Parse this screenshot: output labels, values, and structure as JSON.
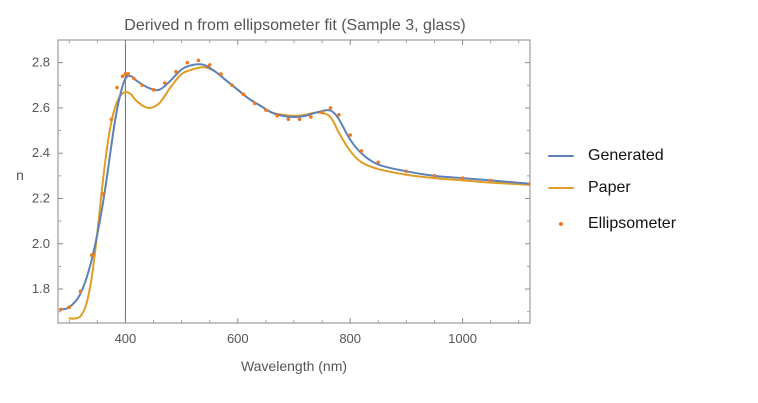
{
  "chart_data": {
    "type": "line",
    "title": "Derived n from ellipsometer fit (Sample 3, glass)",
    "xlabel": "Wavelength (nm)",
    "ylabel": "n",
    "xlim": [
      280,
      1120
    ],
    "ylim": [
      1.65,
      2.9
    ],
    "xticks": [
      400,
      600,
      800,
      1000
    ],
    "xtick_labels": [
      "400",
      "600",
      "800",
      "1000"
    ],
    "yticks": [
      1.8,
      2.0,
      2.2,
      2.4,
      2.6,
      2.8
    ],
    "ytick_labels": [
      "1.8",
      "2.0",
      "2.2",
      "2.4",
      "2.6",
      "2.8"
    ],
    "vertical_reference_line_x": 400,
    "grid": false,
    "legend_position": "right",
    "series": [
      {
        "name": "Generated",
        "style": "line",
        "color": "#5e81b5",
        "x": [
          285,
          300,
          320,
          340,
          360,
          380,
          390,
          400,
          410,
          420,
          440,
          460,
          480,
          500,
          520,
          540,
          560,
          580,
          600,
          620,
          640,
          660,
          680,
          700,
          720,
          740,
          760,
          770,
          780,
          800,
          820,
          850,
          900,
          950,
          1000,
          1050,
          1120
        ],
        "y": [
          1.71,
          1.72,
          1.78,
          1.93,
          2.18,
          2.52,
          2.65,
          2.73,
          2.74,
          2.72,
          2.69,
          2.68,
          2.72,
          2.77,
          2.79,
          2.79,
          2.76,
          2.72,
          2.68,
          2.64,
          2.61,
          2.58,
          2.565,
          2.56,
          2.565,
          2.58,
          2.59,
          2.58,
          2.55,
          2.46,
          2.4,
          2.35,
          2.32,
          2.3,
          2.29,
          2.28,
          2.265
        ]
      },
      {
        "name": "Paper",
        "style": "line",
        "color": "#e19c24",
        "x": [
          300,
          310,
          320,
          330,
          340,
          350,
          360,
          370,
          380,
          390,
          400,
          410,
          420,
          440,
          460,
          480,
          500,
          520,
          540,
          560,
          580,
          600,
          620,
          640,
          660,
          680,
          700,
          720,
          740,
          760,
          770,
          780,
          800,
          820,
          850,
          900,
          950,
          1000,
          1050,
          1120
        ],
        "y": [
          1.67,
          1.67,
          1.68,
          1.73,
          1.85,
          2.05,
          2.28,
          2.47,
          2.59,
          2.65,
          2.67,
          2.66,
          2.63,
          2.6,
          2.62,
          2.69,
          2.75,
          2.77,
          2.78,
          2.76,
          2.72,
          2.68,
          2.64,
          2.61,
          2.58,
          2.57,
          2.565,
          2.57,
          2.58,
          2.57,
          2.54,
          2.49,
          2.41,
          2.36,
          2.33,
          2.305,
          2.29,
          2.28,
          2.27,
          2.26
        ]
      },
      {
        "name": "Ellipsometer",
        "style": "points",
        "color": "#f0781e",
        "x": [
          285,
          300,
          320,
          340,
          360,
          375,
          385,
          395,
          400,
          405,
          415,
          430,
          450,
          470,
          490,
          510,
          530,
          550,
          570,
          590,
          610,
          630,
          650,
          670,
          690,
          710,
          730,
          750,
          765,
          780,
          800,
          820,
          850,
          900,
          950,
          1000,
          1050,
          1120
        ],
        "y": [
          1.71,
          1.72,
          1.79,
          1.95,
          2.22,
          2.55,
          2.69,
          2.74,
          2.75,
          2.75,
          2.73,
          2.7,
          2.68,
          2.71,
          2.76,
          2.8,
          2.81,
          2.79,
          2.75,
          2.7,
          2.66,
          2.62,
          2.59,
          2.565,
          2.55,
          2.55,
          2.56,
          2.58,
          2.6,
          2.57,
          2.48,
          2.41,
          2.36,
          2.32,
          2.3,
          2.29,
          2.28,
          2.265
        ]
      }
    ]
  }
}
